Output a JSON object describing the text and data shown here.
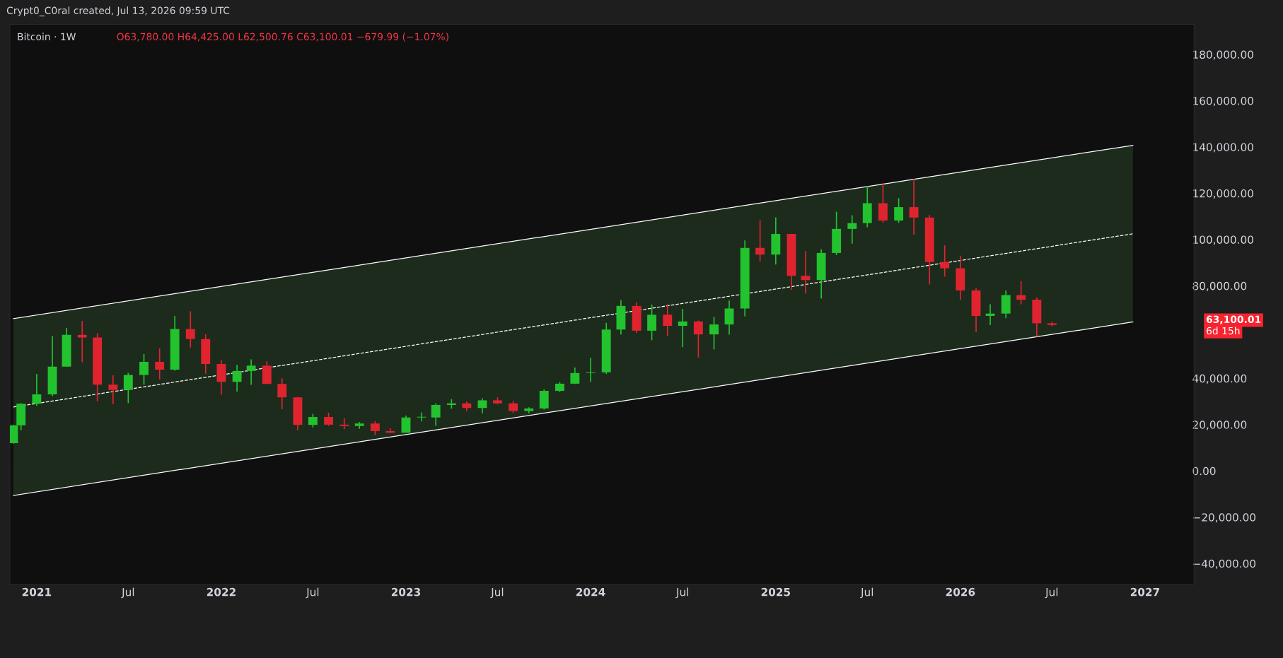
{
  "chart_data": {
    "type": "candlestick",
    "title": "Bitcoin · 1W",
    "annotations": [
      "Crypt0_C0ral created, Jul 13, 2026 09:59 UTC",
      "O63,780.00 H64,425.00 L62,500.76 C63,100.01 −679.99 (−1.07%)",
      "63,100.01",
      "6d 15h"
    ],
    "x": [
      "2020-11-16",
      "2020-12-01",
      "2021-01-01",
      "2021-02-01",
      "2021-03-01",
      "2021-04-01",
      "2021-05-01",
      "2021-06-01",
      "2021-07-01",
      "2021-08-01",
      "2021-09-01",
      "2021-10-01",
      "2021-11-01",
      "2021-12-01",
      "2022-01-01",
      "2022-02-01",
      "2022-03-01",
      "2022-04-01",
      "2022-05-01",
      "2022-06-01",
      "2022-07-01",
      "2022-08-01",
      "2022-09-01",
      "2022-10-01",
      "2022-11-01",
      "2022-12-01",
      "2023-01-01",
      "2023-02-01",
      "2023-03-01",
      "2023-04-01",
      "2023-05-01",
      "2023-06-01",
      "2023-07-01",
      "2023-08-01",
      "2023-09-01",
      "2023-10-01",
      "2023-11-01",
      "2023-12-01",
      "2024-01-01",
      "2024-02-01",
      "2024-03-01",
      "2024-04-01",
      "2024-05-01",
      "2024-06-01",
      "2024-07-01",
      "2024-08-01",
      "2024-09-01",
      "2024-10-01",
      "2024-11-01",
      "2024-12-01",
      "2025-01-01",
      "2025-02-01",
      "2025-03-01",
      "2025-04-01",
      "2025-05-01",
      "2025-06-01",
      "2025-07-01",
      "2025-08-01",
      "2025-09-01",
      "2025-10-01",
      "2025-11-01",
      "2025-12-01",
      "2026-01-01",
      "2026-02-01",
      "2026-03-01",
      "2026-04-01",
      "2026-05-01",
      "2026-06-01",
      "2026-07-01"
    ],
    "ohlc": [
      [
        12000,
        19800,
        11800,
        19700
      ],
      [
        19700,
        29300,
        17600,
        29000
      ],
      [
        29000,
        41900,
        28100,
        33100
      ],
      [
        33100,
        58300,
        32300,
        45100
      ],
      [
        45100,
        61800,
        45000,
        58800
      ],
      [
        58800,
        64800,
        47000,
        57700
      ],
      [
        57700,
        59500,
        30000,
        37300
      ],
      [
        37300,
        41300,
        28800,
        35000
      ],
      [
        35000,
        42400,
        29300,
        41500
      ],
      [
        41500,
        50500,
        37300,
        47100
      ],
      [
        47100,
        52900,
        39600,
        43800
      ],
      [
        43800,
        67000,
        43300,
        61300
      ],
      [
        61300,
        69000,
        53300,
        57000
      ],
      [
        57000,
        59100,
        42000,
        46200
      ],
      [
        46200,
        47900,
        33000,
        38500
      ],
      [
        38500,
        45800,
        34300,
        43200
      ],
      [
        43200,
        48200,
        37200,
        45500
      ],
      [
        45500,
        47400,
        37600,
        37600
      ],
      [
        37600,
        40000,
        26700,
        31800
      ],
      [
        31800,
        31900,
        17600,
        19900
      ],
      [
        19900,
        24700,
        18800,
        23300
      ],
      [
        23300,
        25200,
        19500,
        20000
      ],
      [
        20000,
        22800,
        18100,
        19400
      ],
      [
        19400,
        21100,
        18200,
        20500
      ],
      [
        20500,
        21500,
        15500,
        17200
      ],
      [
        17200,
        18400,
        16300,
        16500
      ],
      [
        16500,
        23900,
        16500,
        23100
      ],
      [
        23100,
        25300,
        21400,
        23400
      ],
      [
        23100,
        29200,
        19500,
        28500
      ],
      [
        28500,
        31000,
        26900,
        29200
      ],
      [
        29200,
        29900,
        25800,
        27200
      ],
      [
        27200,
        31400,
        24800,
        30500
      ],
      [
        30500,
        31800,
        28900,
        29200
      ],
      [
        29200,
        30200,
        25100,
        25900
      ],
      [
        25900,
        27500,
        24900,
        27000
      ],
      [
        27000,
        35200,
        26500,
        34600
      ],
      [
        34600,
        38400,
        34100,
        37700
      ],
      [
        37700,
        44700,
        37600,
        42300
      ],
      [
        42300,
        48900,
        38500,
        42600
      ],
      [
        42600,
        64000,
        41900,
        61100
      ],
      [
        61100,
        73800,
        59000,
        71300
      ],
      [
        71300,
        72800,
        59600,
        60600
      ],
      [
        60600,
        71900,
        56500,
        67500
      ],
      [
        67500,
        72000,
        58400,
        62700
      ],
      [
        62700,
        70000,
        53500,
        64600
      ],
      [
        64600,
        65000,
        49000,
        59000
      ],
      [
        59000,
        66500,
        52500,
        63300
      ],
      [
        63300,
        73600,
        58900,
        70200
      ],
      [
        70200,
        99600,
        66800,
        96400
      ],
      [
        96400,
        108300,
        90500,
        93500
      ],
      [
        93500,
        109600,
        89200,
        102400
      ],
      [
        102400,
        102500,
        78200,
        84300
      ],
      [
        84300,
        95000,
        76600,
        82500
      ],
      [
        82500,
        95800,
        74500,
        94200
      ],
      [
        94200,
        112000,
        93300,
        104600
      ],
      [
        104600,
        110500,
        98200,
        107100
      ],
      [
        107100,
        123200,
        105300,
        115700
      ],
      [
        115700,
        124400,
        107300,
        108200
      ],
      [
        108200,
        117900,
        107200,
        114000
      ],
      [
        114000,
        126200,
        102000,
        109500
      ],
      [
        109500,
        110600,
        80600,
        90300
      ],
      [
        90300,
        97500,
        84000,
        87600
      ],
      [
        87600,
        93000,
        74000,
        78000
      ],
      [
        78000,
        79000,
        60000,
        67000
      ],
      [
        67000,
        72000,
        63000,
        68000
      ],
      [
        68000,
        78000,
        66000,
        76000
      ],
      [
        76000,
        82000,
        72000,
        74000
      ],
      [
        74000,
        75000,
        58000,
        63800
      ],
      [
        63800,
        64400,
        62500,
        63100
      ]
    ],
    "colors": [
      "#22c32e",
      "#22c32e",
      "#22c32e",
      "#22c32e",
      "#22c32e",
      "#e0242f",
      "#e0242f",
      "#e0242f",
      "#22c32e",
      "#22c32e",
      "#e0242f",
      "#22c32e",
      "#e0242f",
      "#e0242f",
      "#e0242f",
      "#22c32e",
      "#22c32e",
      "#e0242f",
      "#e0242f",
      "#e0242f",
      "#22c32e",
      "#e0242f",
      "#e0242f",
      "#22c32e",
      "#e0242f",
      "#e0242f",
      "#22c32e",
      "#22c32e",
      "#22c32e",
      "#22c32e",
      "#e0242f",
      "#22c32e",
      "#e0242f",
      "#e0242f",
      "#22c32e",
      "#22c32e",
      "#22c32e",
      "#22c32e",
      "#22c32e",
      "#22c32e",
      "#22c32e",
      "#e0242f",
      "#22c32e",
      "#e0242f",
      "#22c32e",
      "#e0242f",
      "#22c32e",
      "#22c32e",
      "#22c32e",
      "#e0242f",
      "#22c32e",
      "#e0242f",
      "#e0242f",
      "#22c32e",
      "#22c32e",
      "#22c32e",
      "#22c32e",
      "#e0242f",
      "#22c32e",
      "#e0242f",
      "#e0242f",
      "#e0242f",
      "#e0242f",
      "#e0242f",
      "#22c32e",
      "#22c32e",
      "#e0242f",
      "#e0242f",
      "#e0242f"
    ],
    "series": [
      {
        "type": "line",
        "x": [
          "2020-11-16",
          "2026-12-08"
        ],
        "values": [
          27600,
          102500
        ],
        "lower": [
          -10600,
          64400
        ],
        "upper": [
          65800,
          140700
        ],
        "color": "#ffffff",
        "line_style": "dashed"
      },
      {
        "type": "line",
        "x": [
          "2020-11-16",
          "2026-12-08"
        ],
        "values": [
          65800,
          140700
        ],
        "color": "#ffffff",
        "line_style": "solid"
      },
      {
        "type": "line",
        "x": [
          "2020-11-16",
          "2026-12-08"
        ],
        "values": [
          -10600,
          64400
        ],
        "color": "#ffffff",
        "line_style": "solid"
      }
    ],
    "xlim": [
      "2020-11-09",
      "2027-04-08"
    ],
    "xticks": [
      {
        "value": "2021-01-01",
        "label": "2021"
      },
      {
        "value": "2021-07-01",
        "label": "Jul"
      },
      {
        "value": "2022-01-01",
        "label": "2022"
      },
      {
        "value": "2022-07-01",
        "label": "Jul"
      },
      {
        "value": "2023-01-01",
        "label": "2023"
      },
      {
        "value": "2023-07-01",
        "label": "Jul"
      },
      {
        "value": "2024-01-01",
        "label": "2024"
      },
      {
        "value": "2024-07-01",
        "label": "Jul"
      },
      {
        "value": "2025-01-01",
        "label": "2025"
      },
      {
        "value": "2025-07-01",
        "label": "Jul"
      },
      {
        "value": "2026-01-01",
        "label": "2026"
      },
      {
        "value": "2026-07-01",
        "label": "Jul"
      },
      {
        "value": "2027-01-01",
        "label": "2027"
      }
    ],
    "ylim": [
      -49000,
      193000
    ],
    "yticks": [
      {
        "value": -40000,
        "label": "−40,000.00"
      },
      {
        "value": -20000,
        "label": "−20,000.00"
      },
      {
        "value": 0,
        "label": "0.00"
      },
      {
        "value": 20000,
        "label": "20,000.00"
      },
      {
        "value": 40000,
        "label": "40,000.00"
      },
      {
        "value": 80000,
        "label": "80,000.00"
      },
      {
        "value": 100000,
        "label": "100,000.00"
      },
      {
        "value": 120000,
        "label": "120,000.00"
      },
      {
        "value": 140000,
        "label": "140,000.00"
      },
      {
        "value": 160000,
        "label": "160,000.00"
      },
      {
        "value": 180000,
        "label": "180,000.00"
      }
    ],
    "grid": false,
    "legend": false
  }
}
